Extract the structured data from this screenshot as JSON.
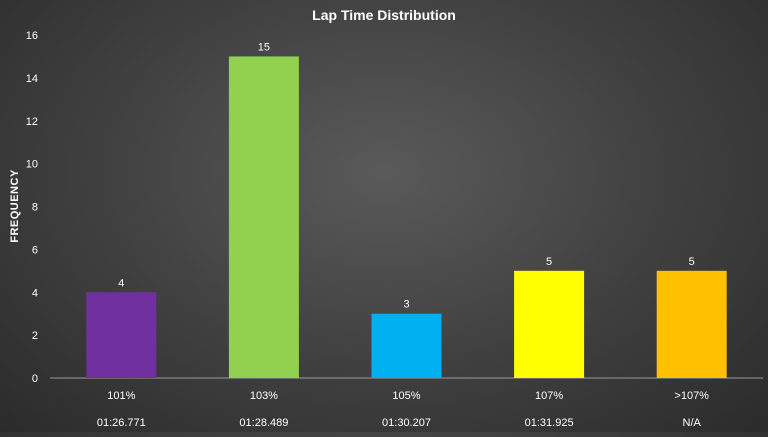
{
  "chart_data": {
    "type": "bar",
    "title": "Lap Time Distribution",
    "xlabel": "",
    "ylabel": "FREQUENCY",
    "ylim": [
      0,
      16
    ],
    "yticks": [
      0,
      2,
      4,
      6,
      8,
      10,
      12,
      14,
      16
    ],
    "grid": false,
    "legend": "none",
    "categories": [
      "101%",
      "103%",
      "105%",
      "107%",
      ">107%"
    ],
    "category_sublabels": [
      "01:26.771",
      "01:28.489",
      "01:30.207",
      "01:31.925",
      "N/A"
    ],
    "values": [
      4,
      15,
      3,
      5,
      5
    ],
    "colors": [
      "#7030a0",
      "#92d050",
      "#00b0f0",
      "#ffff00",
      "#ffc000"
    ],
    "data_labels": [
      "4",
      "15",
      "3",
      "5",
      "5"
    ]
  }
}
